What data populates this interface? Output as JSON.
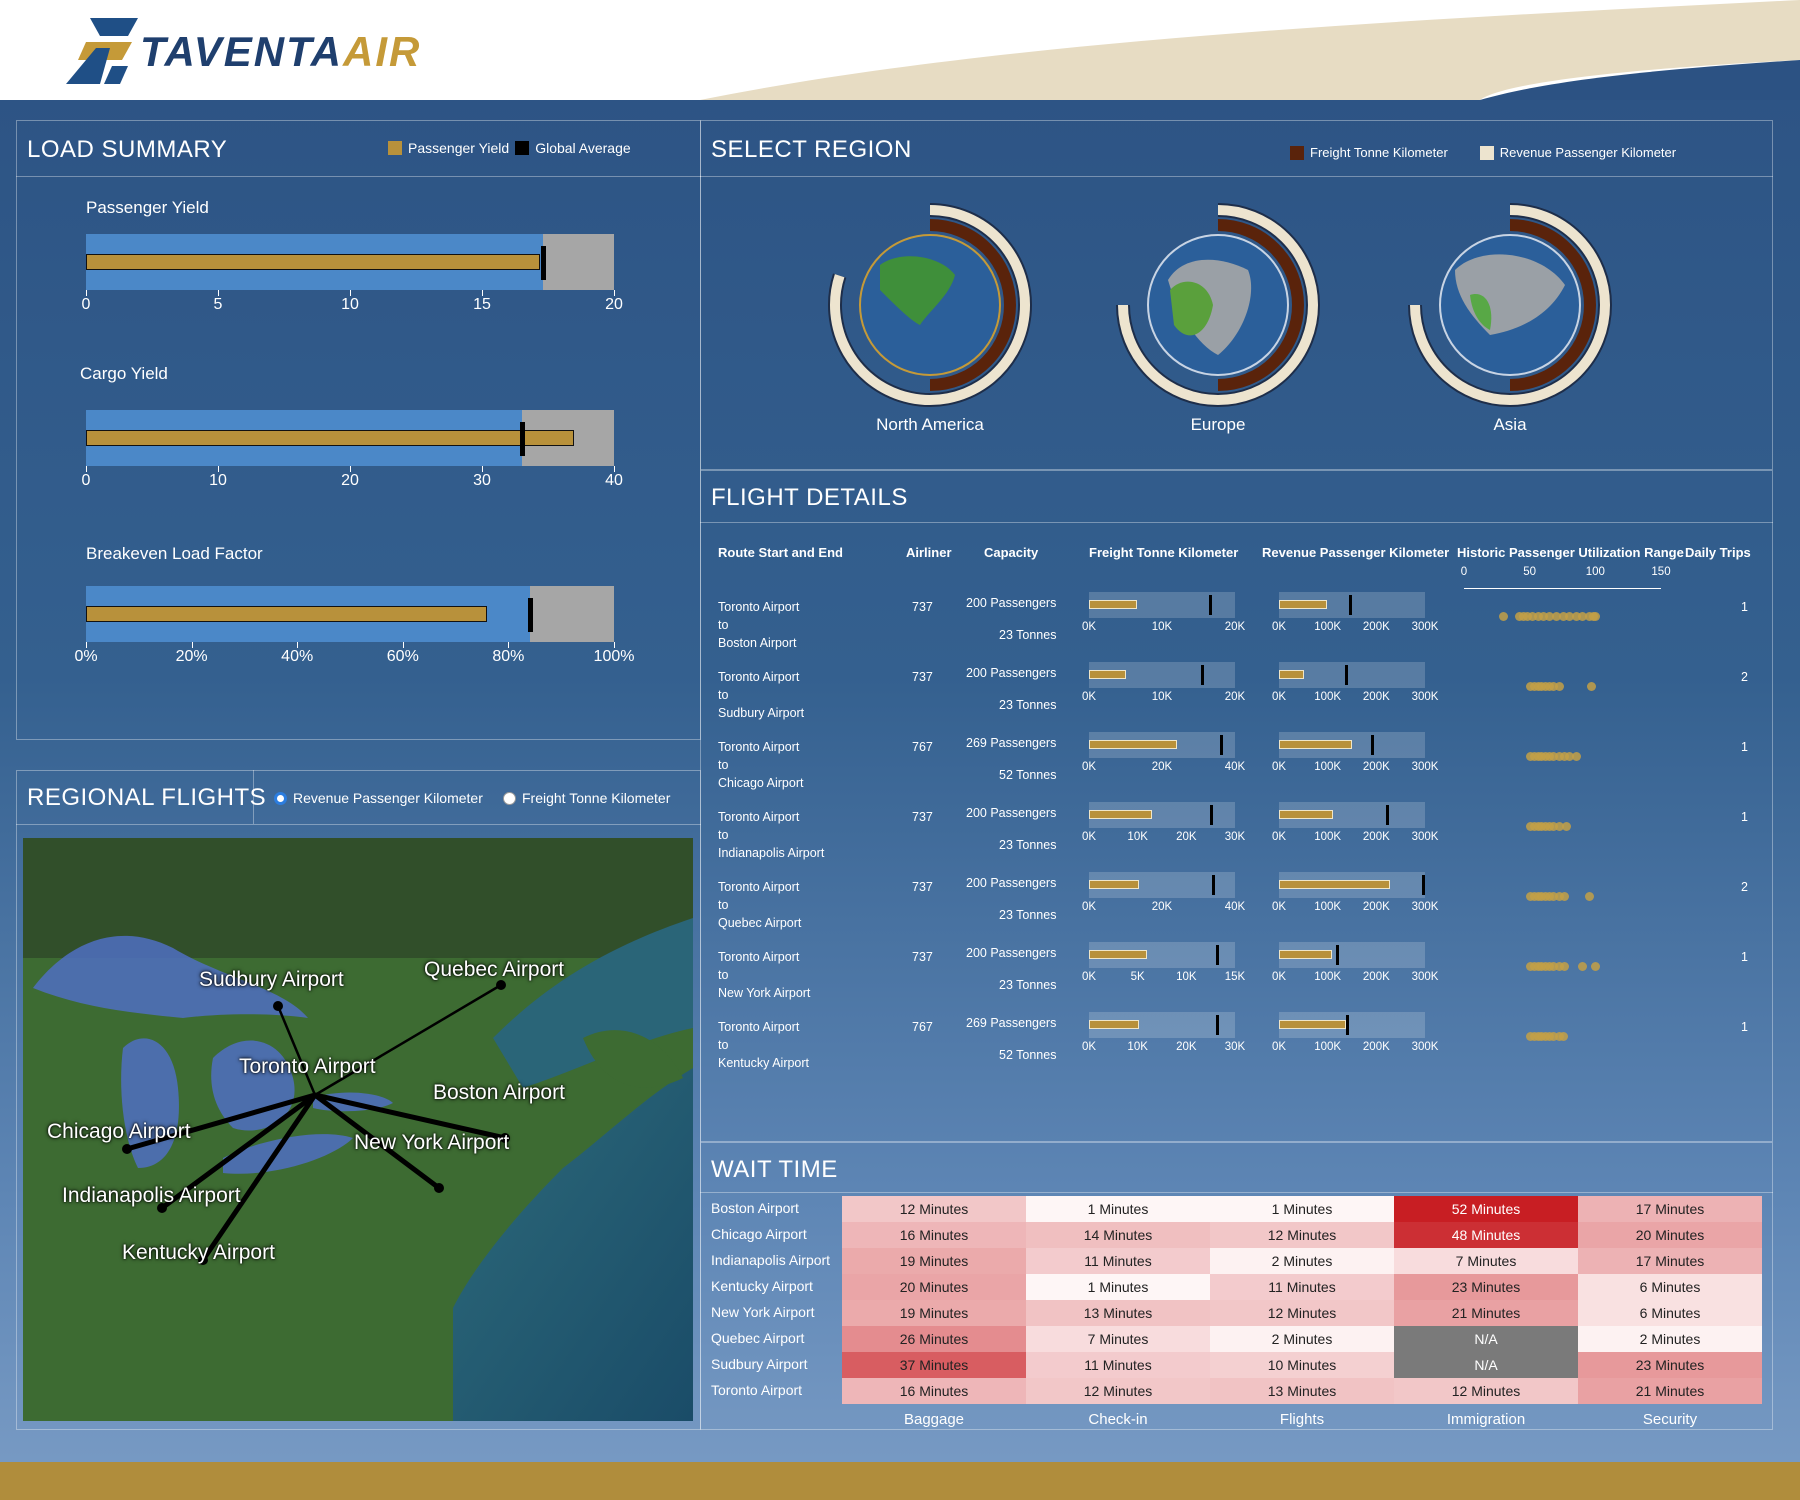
{
  "brand": {
    "name_a": "TAVENTA",
    "name_b": "AIR"
  },
  "load_summary": {
    "title": "LOAD SUMMARY",
    "legend": [
      {
        "label": "Passenger Yield",
        "color": "#b8913b"
      },
      {
        "label": "Global Average",
        "color": "#000000"
      }
    ],
    "bullets": [
      {
        "title": "Passenger Yield",
        "ticks": [
          "0",
          "5",
          "10",
          "15",
          "20"
        ],
        "max": 20,
        "range": 17.3,
        "value": 17.2,
        "average": 17.3
      },
      {
        "title": "Cargo Yield",
        "ticks": [
          "0",
          "10",
          "20",
          "30",
          "40"
        ],
        "max": 40,
        "range": 33,
        "value": 37,
        "average": 33
      },
      {
        "title": "Breakeven Load Factor",
        "ticks": [
          "0%",
          "20%",
          "40%",
          "60%",
          "80%",
          "100%"
        ],
        "max": 100,
        "range": 84,
        "value": 76,
        "average": 84
      }
    ]
  },
  "select_region": {
    "title": "SELECT REGION",
    "legend": [
      {
        "label": "Freight Tonne Kilometer",
        "color": "#5a230b"
      },
      {
        "label": "Revenue Passenger Kilometer",
        "color": "#ede4cf"
      }
    ],
    "regions": [
      {
        "name": "North America",
        "freight_fraction": 0.5,
        "passenger_fraction": 0.8
      },
      {
        "name": "Europe",
        "freight_fraction": 0.5,
        "passenger_fraction": 0.75
      },
      {
        "name": "Asia",
        "freight_fraction": 0.5,
        "passenger_fraction": 0.75
      }
    ]
  },
  "flight_details": {
    "title": "FLIGHT DETAILS",
    "headers": {
      "route": "Route Start and End",
      "airliner": "Airliner",
      "capacity": "Capacity",
      "ftk": "Freight Tonne Kilometer",
      "rpk": "Revenue Passenger Kilometer",
      "hist": "Historic Passenger Utilization Range",
      "trips": "Daily Trips"
    },
    "hist_ticks": [
      "0",
      "50",
      "100",
      "150"
    ],
    "to_word": "to",
    "rows": [
      {
        "start": "Toronto Airport",
        "end": "Boston Airport",
        "airliner": "737",
        "passengers": "200 Passengers",
        "tonnes": "23 Tonnes",
        "ftk_ticks": [
          "0K",
          "10K",
          "20K"
        ],
        "ftk_value": 0.33,
        "ftk_mark": 0.82,
        "rpk_ticks": [
          "0K",
          "100K",
          "200K",
          "300K"
        ],
        "rpk_value": 0.33,
        "rpk_mark": 0.48,
        "hist": [
          30,
          42,
          45,
          48,
          52,
          56,
          60,
          65,
          70,
          75,
          80,
          85,
          90,
          95,
          98,
          100
        ],
        "trips": "1"
      },
      {
        "start": "Toronto Airport",
        "end": "Sudbury Airport",
        "airliner": "737",
        "passengers": "200 Passengers",
        "tonnes": "23 Tonnes",
        "ftk_ticks": [
          "0K",
          "10K",
          "20K"
        ],
        "ftk_value": 0.25,
        "ftk_mark": 0.77,
        "rpk_ticks": [
          "0K",
          "100K",
          "200K",
          "300K"
        ],
        "rpk_value": 0.17,
        "rpk_mark": 0.45,
        "hist": [
          50,
          53,
          56,
          59,
          62,
          65,
          68,
          72,
          97
        ],
        "trips": "2"
      },
      {
        "start": "Toronto Airport",
        "end": "Chicago Airport",
        "airliner": "767",
        "passengers": "269 Passengers",
        "tonnes": "52 Tonnes",
        "ftk_ticks": [
          "0K",
          "20K",
          "40K"
        ],
        "ftk_value": 0.6,
        "ftk_mark": 0.9,
        "rpk_ticks": [
          "0K",
          "100K",
          "200K",
          "300K"
        ],
        "rpk_value": 0.5,
        "rpk_mark": 0.63,
        "hist": [
          50,
          53,
          56,
          59,
          62,
          65,
          68,
          72,
          76,
          80,
          85
        ],
        "trips": "1"
      },
      {
        "start": "Toronto Airport",
        "end": "Indianapolis Airport",
        "airliner": "737",
        "passengers": "200 Passengers",
        "tonnes": "23 Tonnes",
        "ftk_ticks": [
          "0K",
          "10K",
          "20K",
          "30K"
        ],
        "ftk_value": 0.43,
        "ftk_mark": 0.83,
        "rpk_ticks": [
          "0K",
          "100K",
          "200K",
          "300K"
        ],
        "rpk_value": 0.37,
        "rpk_mark": 0.73,
        "hist": [
          50,
          53,
          56,
          59,
          62,
          65,
          68,
          72,
          78
        ],
        "trips": "1"
      },
      {
        "start": "Toronto Airport",
        "end": "Quebec Airport",
        "airliner": "737",
        "passengers": "200 Passengers",
        "tonnes": "23 Tonnes",
        "ftk_ticks": [
          "0K",
          "20K",
          "40K"
        ],
        "ftk_value": 0.34,
        "ftk_mark": 0.84,
        "rpk_ticks": [
          "0K",
          "100K",
          "200K",
          "300K"
        ],
        "rpk_value": 0.76,
        "rpk_mark": 0.98,
        "hist": [
          50,
          53,
          56,
          59,
          62,
          65,
          68,
          72,
          76,
          95
        ],
        "trips": "2"
      },
      {
        "start": "Toronto Airport",
        "end": "New York Airport",
        "airliner": "737",
        "passengers": "200 Passengers",
        "tonnes": "23 Tonnes",
        "ftk_ticks": [
          "0K",
          "5K",
          "10K",
          "15K"
        ],
        "ftk_value": 0.4,
        "ftk_mark": 0.87,
        "rpk_ticks": [
          "0K",
          "100K",
          "200K",
          "300K"
        ],
        "rpk_value": 0.36,
        "rpk_mark": 0.39,
        "hist": [
          50,
          53,
          56,
          59,
          62,
          65,
          68,
          72,
          76,
          90,
          100
        ],
        "trips": "1"
      },
      {
        "start": "Toronto Airport",
        "end": "Kentucky Airport",
        "airliner": "767",
        "passengers": "269 Passengers",
        "tonnes": "52 Tonnes",
        "ftk_ticks": [
          "0K",
          "10K",
          "20K",
          "30K"
        ],
        "ftk_value": 0.34,
        "ftk_mark": 0.87,
        "rpk_ticks": [
          "0K",
          "100K",
          "200K",
          "300K"
        ],
        "rpk_value": 0.46,
        "rpk_mark": 0.46,
        "hist": [
          50,
          53,
          56,
          59,
          62,
          65,
          68,
          72,
          75
        ],
        "trips": "1"
      }
    ]
  },
  "regional_flights": {
    "title": "REGIONAL FLIGHTS",
    "options": [
      {
        "label": "Revenue Passenger Kilometer",
        "selected": true
      },
      {
        "label": "Freight Tonne Kilometer",
        "selected": false
      }
    ],
    "hub": "Toronto Airport",
    "airports": [
      "Sudbury Airport",
      "Quebec Airport",
      "Toronto Airport",
      "Chicago Airport",
      "Boston Airport",
      "New York Airport",
      "Indianapolis Airport",
      "Kentucky Airport"
    ]
  },
  "wait_time": {
    "title": "WAIT TIME",
    "columns": [
      "Baggage",
      "Check-in",
      "Flights",
      "Immigration",
      "Security"
    ],
    "rows": [
      {
        "airport": "Boston Airport",
        "cells": [
          [
            "12 Minutes",
            12
          ],
          [
            "1 Minutes",
            1
          ],
          [
            "1 Minutes",
            1
          ],
          [
            "52 Minutes",
            52
          ],
          [
            "17 Minutes",
            17
          ]
        ]
      },
      {
        "airport": "Chicago Airport",
        "cells": [
          [
            "16 Minutes",
            16
          ],
          [
            "14 Minutes",
            14
          ],
          [
            "12 Minutes",
            12
          ],
          [
            "48 Minutes",
            48
          ],
          [
            "20 Minutes",
            20
          ]
        ]
      },
      {
        "airport": "Indianapolis Airport",
        "cells": [
          [
            "19 Minutes",
            19
          ],
          [
            "11 Minutes",
            11
          ],
          [
            "2 Minutes",
            2
          ],
          [
            "7 Minutes",
            7
          ],
          [
            "17 Minutes",
            17
          ]
        ]
      },
      {
        "airport": "Kentucky Airport",
        "cells": [
          [
            "20 Minutes",
            20
          ],
          [
            "1 Minutes",
            1
          ],
          [
            "11 Minutes",
            11
          ],
          [
            "23 Minutes",
            23
          ],
          [
            "6 Minutes",
            6
          ]
        ]
      },
      {
        "airport": "New York Airport",
        "cells": [
          [
            "19 Minutes",
            19
          ],
          [
            "13 Minutes",
            13
          ],
          [
            "12 Minutes",
            12
          ],
          [
            "21 Minutes",
            21
          ],
          [
            "6 Minutes",
            6
          ]
        ]
      },
      {
        "airport": "Quebec Airport",
        "cells": [
          [
            "26 Minutes",
            26
          ],
          [
            "7 Minutes",
            7
          ],
          [
            "2 Minutes",
            2
          ],
          [
            "N/A",
            null
          ],
          [
            "2 Minutes",
            2
          ]
        ]
      },
      {
        "airport": "Sudbury Airport",
        "cells": [
          [
            "37 Minutes",
            37
          ],
          [
            "11 Minutes",
            11
          ],
          [
            "10 Minutes",
            10
          ],
          [
            "N/A",
            null
          ],
          [
            "23 Minutes",
            23
          ]
        ]
      },
      {
        "airport": "Toronto Airport",
        "cells": [
          [
            "16 Minutes",
            16
          ],
          [
            "12 Minutes",
            12
          ],
          [
            "13 Minutes",
            13
          ],
          [
            "12 Minutes",
            12
          ],
          [
            "21 Minutes",
            21
          ]
        ]
      }
    ]
  }
}
